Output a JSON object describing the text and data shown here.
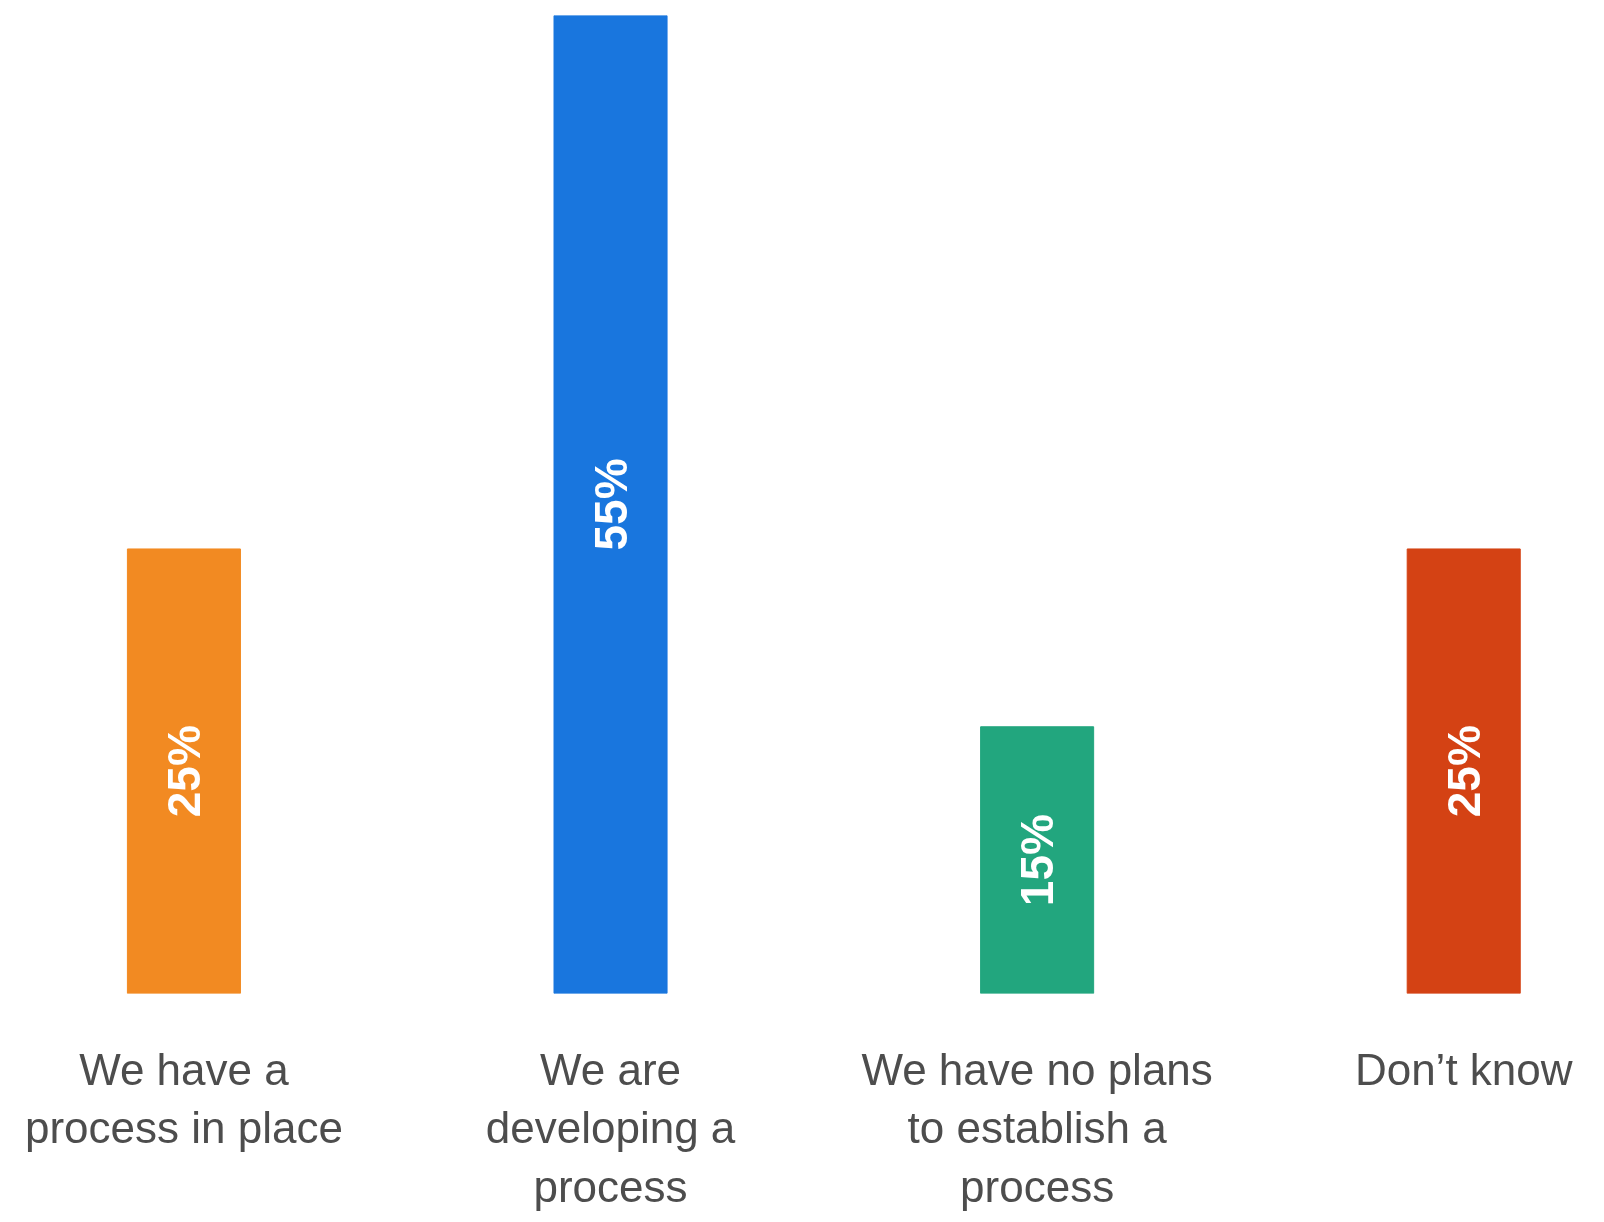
{
  "chart_data": {
    "type": "bar",
    "categories": [
      "We have a process in place",
      "We are developing a process",
      "We have no plans to establish a process",
      "Don’t know"
    ],
    "values": [
      25,
      55,
      15,
      25
    ],
    "colors": [
      "#f28a22",
      "#1976de",
      "#22a67e",
      "#d44214"
    ],
    "value_labels": [
      "25%",
      "55%",
      "15%",
      "25%"
    ]
  }
}
